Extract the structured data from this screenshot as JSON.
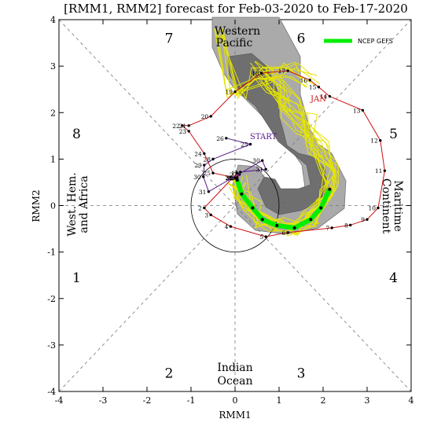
{
  "title": "[RMM1, RMM2] forecast for Feb-03-2020 to Feb-17-2020",
  "xlabel": "RMM1",
  "ylabel": "RMM2",
  "colors": {
    "obs_path": "#cc1111",
    "start_path": "#551a8b",
    "ensemble_mean": "#00ee00",
    "members": "#e6e600",
    "spread": "#999999",
    "dark_spread": "#555555"
  },
  "phase_labels": [
    {
      "text": "1",
      "at": [
        -3.6,
        -1.55
      ]
    },
    {
      "text": "2",
      "at": [
        -1.5,
        -3.6
      ]
    },
    {
      "text": "3",
      "at": [
        1.5,
        -3.6
      ]
    },
    {
      "text": "4",
      "at": [
        3.6,
        -1.55
      ]
    },
    {
      "text": "5",
      "at": [
        3.6,
        1.55
      ]
    },
    {
      "text": "6",
      "at": [
        1.5,
        3.6
      ]
    },
    {
      "text": "7",
      "at": [
        -1.5,
        3.6
      ]
    },
    {
      "text": "8",
      "at": [
        -3.6,
        1.55
      ]
    }
  ],
  "regions": {
    "western_pacific": [
      "Western",
      "Pacific"
    ],
    "west_hem": [
      "West. Hem.",
      "and Africa"
    ],
    "maritime": [
      "Maritime",
      "Continent"
    ],
    "indian": [
      "Indian",
      "Ocean"
    ]
  },
  "annotations": {
    "jan": "JAN",
    "start": "START"
  },
  "legend": {
    "label": "NCEP GEFS"
  },
  "chart_data": {
    "type": "line",
    "title": "[RMM1, RMM2] forecast for Feb-03-2020 to Feb-17-2020",
    "xlabel": "RMM1",
    "ylabel": "RMM2",
    "xlim": [
      -4,
      4
    ],
    "ylim": [
      -4,
      4
    ],
    "xticks": [
      "-4",
      "-3",
      "-2",
      "-1",
      "0",
      "1",
      "2",
      "3",
      "4"
    ],
    "yticks": [
      "-4",
      "-3",
      "-2",
      "-1",
      "0",
      "1",
      "2",
      "3",
      "4"
    ],
    "unit_circle_radius": 1,
    "series": [
      {
        "kind": "observed_december",
        "points": [
          {
            "label": "1",
            "x": 0.05,
            "y": 0.7
          },
          {
            "label": "2",
            "x": -0.7,
            "y": -0.05
          },
          {
            "label": "3",
            "x": -0.55,
            "y": -0.2
          },
          {
            "label": "4",
            "x": -0.1,
            "y": -0.45
          },
          {
            "label": "5",
            "x": 0.7,
            "y": -0.67
          },
          {
            "label": "6",
            "x": 1.2,
            "y": -0.58
          },
          {
            "label": "7",
            "x": 2.2,
            "y": -0.48
          },
          {
            "label": "8",
            "x": 2.62,
            "y": -0.42
          },
          {
            "label": "9",
            "x": 3.0,
            "y": -0.3
          },
          {
            "label": "10",
            "x": 3.25,
            "y": -0.05
          },
          {
            "label": "11",
            "x": 3.4,
            "y": 0.75
          },
          {
            "label": "12",
            "x": 3.3,
            "y": 1.4
          },
          {
            "label": "13",
            "x": 2.9,
            "y": 2.05
          },
          {
            "label": "14",
            "x": 2.15,
            "y": 2.35
          },
          {
            "label": "15",
            "x": 1.9,
            "y": 2.55
          },
          {
            "label": "16",
            "x": 1.7,
            "y": 2.7
          },
          {
            "label": "17",
            "x": 1.2,
            "y": 2.9
          },
          {
            "label": "18",
            "x": 0.6,
            "y": 2.85
          },
          {
            "label": "19",
            "x": 0.0,
            "y": 2.45
          },
          {
            "label": "20",
            "x": -0.55,
            "y": 1.92
          },
          {
            "label": "21",
            "x": -1.05,
            "y": 1.72
          },
          {
            "label": "22",
            "x": -1.2,
            "y": 1.72
          },
          {
            "label": "23",
            "x": -1.05,
            "y": 1.6
          },
          {
            "label": "24",
            "x": -0.7,
            "y": 1.12
          },
          {
            "label": "25",
            "x": -0.5,
            "y": 0.7
          },
          {
            "label": "26",
            "x": 0.0,
            "y": 0.6
          },
          {
            "label": "27",
            "x": 0.1,
            "y": 0.67
          },
          {
            "label": "28",
            "x": 0.05,
            "y": 0.6
          },
          {
            "label": "29",
            "x": 0.0,
            "y": 0.6
          },
          {
            "label": "30",
            "x": 0.02,
            "y": 0.58
          },
          {
            "label": "31",
            "x": 0.0,
            "y": 0.6
          }
        ]
      },
      {
        "kind": "observed_january",
        "points": [
          {
            "label": "26",
            "x": -0.2,
            "y": 1.45
          },
          {
            "label": "25",
            "x": 0.35,
            "y": 1.32
          },
          {
            "label": "28",
            "x": -0.5,
            "y": 1.0
          },
          {
            "label": "29",
            "x": -0.7,
            "y": 0.87
          },
          {
            "label": "30",
            "x": -0.72,
            "y": 0.62
          },
          {
            "label": "31",
            "x": -0.6,
            "y": 0.3
          },
          {
            "label": "30",
            "x": 0.62,
            "y": 0.97
          },
          {
            "label": "31",
            "x": 0.7,
            "y": 0.78
          },
          {
            "label": "1",
            "x": 0.12,
            "y": 0.72
          },
          {
            "label": "2",
            "x": 0.05,
            "y": 0.6
          }
        ]
      },
      {
        "kind": "ensemble_mean",
        "name": "NCEP GEFS",
        "points": [
          {
            "x": 0.05,
            "y": 0.55
          },
          {
            "x": 0.15,
            "y": 0.25
          },
          {
            "x": 0.4,
            "y": -0.05
          },
          {
            "x": 0.62,
            "y": -0.3
          },
          {
            "x": 0.95,
            "y": -0.43
          },
          {
            "x": 1.35,
            "y": -0.48
          },
          {
            "x": 1.72,
            "y": -0.3
          },
          {
            "x": 1.95,
            "y": -0.05
          },
          {
            "x": 2.15,
            "y": 0.35
          }
        ]
      }
    ]
  }
}
